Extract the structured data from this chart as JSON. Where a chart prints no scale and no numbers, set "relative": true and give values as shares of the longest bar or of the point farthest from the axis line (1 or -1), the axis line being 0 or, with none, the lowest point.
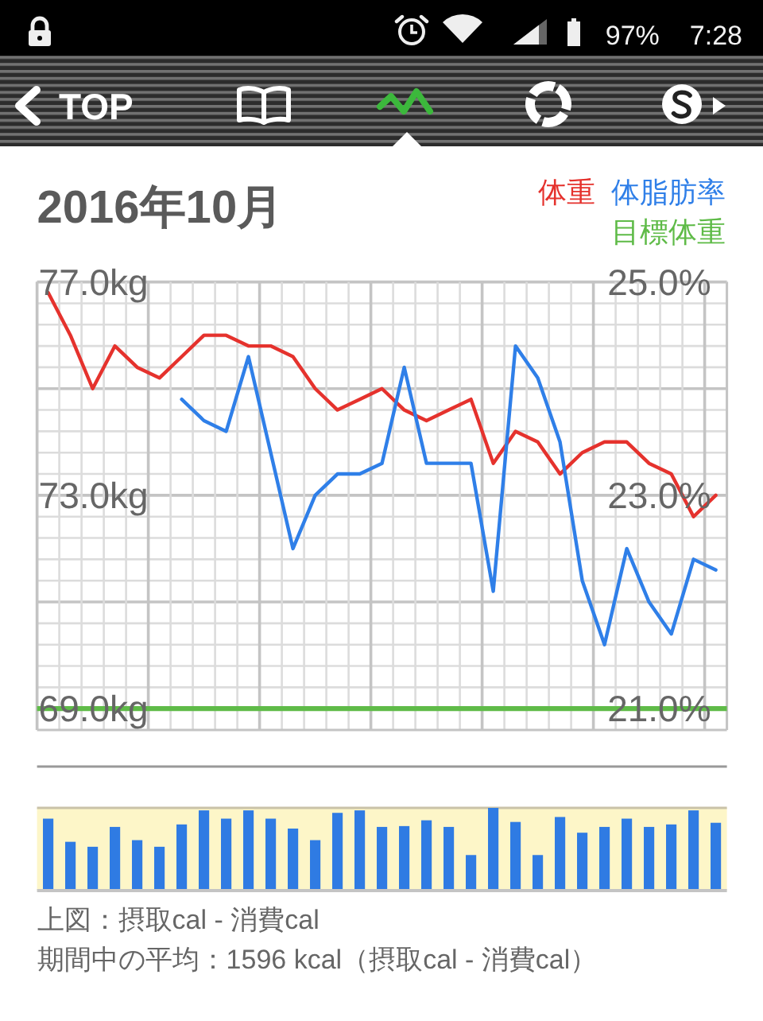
{
  "chart_data": [
    {
      "type": "other",
      "annotations": [
        "97%",
        "7:28",
        "TOP"
      ]
    },
    {
      "type": "line",
      "title": "2016年10月",
      "categories": [
        null,
        null,
        null,
        null,
        null,
        null,
        null,
        null,
        null,
        null,
        null,
        null,
        null,
        null,
        null,
        null,
        null,
        null,
        null,
        null,
        null,
        null,
        null,
        null,
        null,
        null,
        null,
        null,
        null,
        null,
        null
      ],
      "series": [
        {
          "name": "体重",
          "color": "#e5322d",
          "values": [
            76.8,
            76.0,
            75.0,
            75.8,
            75.4,
            75.2,
            75.6,
            76.0,
            76.0,
            75.8,
            75.8,
            75.6,
            75.0,
            74.6,
            74.8,
            75.0,
            74.6,
            74.4,
            74.6,
            74.8,
            73.6,
            74.2,
            74.0,
            73.4,
            73.8,
            74.0,
            74.0,
            73.6,
            73.4,
            72.6,
            73.0
          ]
        },
        {
          "name": "体脂肪率",
          "color": "#2f7fe8",
          "axis": "y2",
          "values": [
            null,
            null,
            null,
            null,
            null,
            null,
            23.9,
            23.7,
            23.6,
            24.3,
            23.4,
            22.5,
            23.0,
            23.2,
            23.2,
            23.3,
            24.2,
            23.3,
            23.3,
            23.3,
            22.1,
            24.4,
            24.1,
            23.5,
            22.2,
            21.6,
            22.5,
            22.0,
            21.7,
            22.4,
            22.3
          ]
        }
      ],
      "ylim": [
        68.6,
        77
      ],
      "yticks": [
        {
          "value": 77,
          "label": "77.0kg"
        },
        {
          "value": 76.6,
          "label": null
        },
        {
          "value": 76.2,
          "label": null
        },
        {
          "value": 75.8,
          "label": null
        },
        {
          "value": 75.4,
          "label": null
        },
        {
          "value": 75,
          "label": null
        },
        {
          "value": 74.6,
          "label": null
        },
        {
          "value": 74.2,
          "label": null
        },
        {
          "value": 73.8,
          "label": null
        },
        {
          "value": 73.4,
          "label": null
        },
        {
          "value": 73,
          "label": "73.0kg"
        },
        {
          "value": 72.6,
          "label": null
        },
        {
          "value": 72.2,
          "label": null
        },
        {
          "value": 71.8,
          "label": null
        },
        {
          "value": 71.4,
          "label": null
        },
        {
          "value": 71,
          "label": null
        },
        {
          "value": 70.6,
          "label": null
        },
        {
          "value": 70.2,
          "label": null
        },
        {
          "value": 69.8,
          "label": null
        },
        {
          "value": 69.4,
          "label": null
        },
        {
          "value": 69,
          "label": "69.0kg"
        }
      ],
      "y2lim": [
        20.8,
        25
      ],
      "y2ticks": [
        {
          "value": 25,
          "label": "25.0%"
        },
        {
          "value": 23,
          "label": "23.0%"
        },
        {
          "value": 21,
          "label": "21.0%"
        }
      ],
      "ref_lines": [
        {
          "axis": "y",
          "value": 69,
          "label": "目標体重",
          "color": "#5fbb48"
        }
      ],
      "grid": true,
      "legend": "top right"
    },
    {
      "type": "bar",
      "relative": true,
      "color": "#2f7be3",
      "categories": [
        null,
        null,
        null,
        null,
        null,
        null,
        null,
        null,
        null,
        null,
        null,
        null,
        null,
        null,
        null,
        null,
        null,
        null,
        null,
        null,
        null,
        null,
        null,
        null,
        null,
        null,
        null,
        null,
        null,
        null,
        null
      ],
      "values": [
        0.87,
        0.59,
        0.53,
        0.77,
        0.61,
        0.53,
        0.8,
        0.97,
        0.87,
        0.97,
        0.87,
        0.75,
        0.61,
        0.94,
        0.97,
        0.77,
        0.78,
        0.85,
        0.77,
        0.43,
        1,
        0.83,
        0.43,
        0.89,
        0.7,
        0.77,
        0.87,
        0.77,
        0.8,
        0.97,
        0.82
      ],
      "annotations": [
        "上図：摂取cal - 消費cal",
        "期間中の平均：1596 kcal（摂取cal - 消費cal）"
      ]
    }
  ]
}
